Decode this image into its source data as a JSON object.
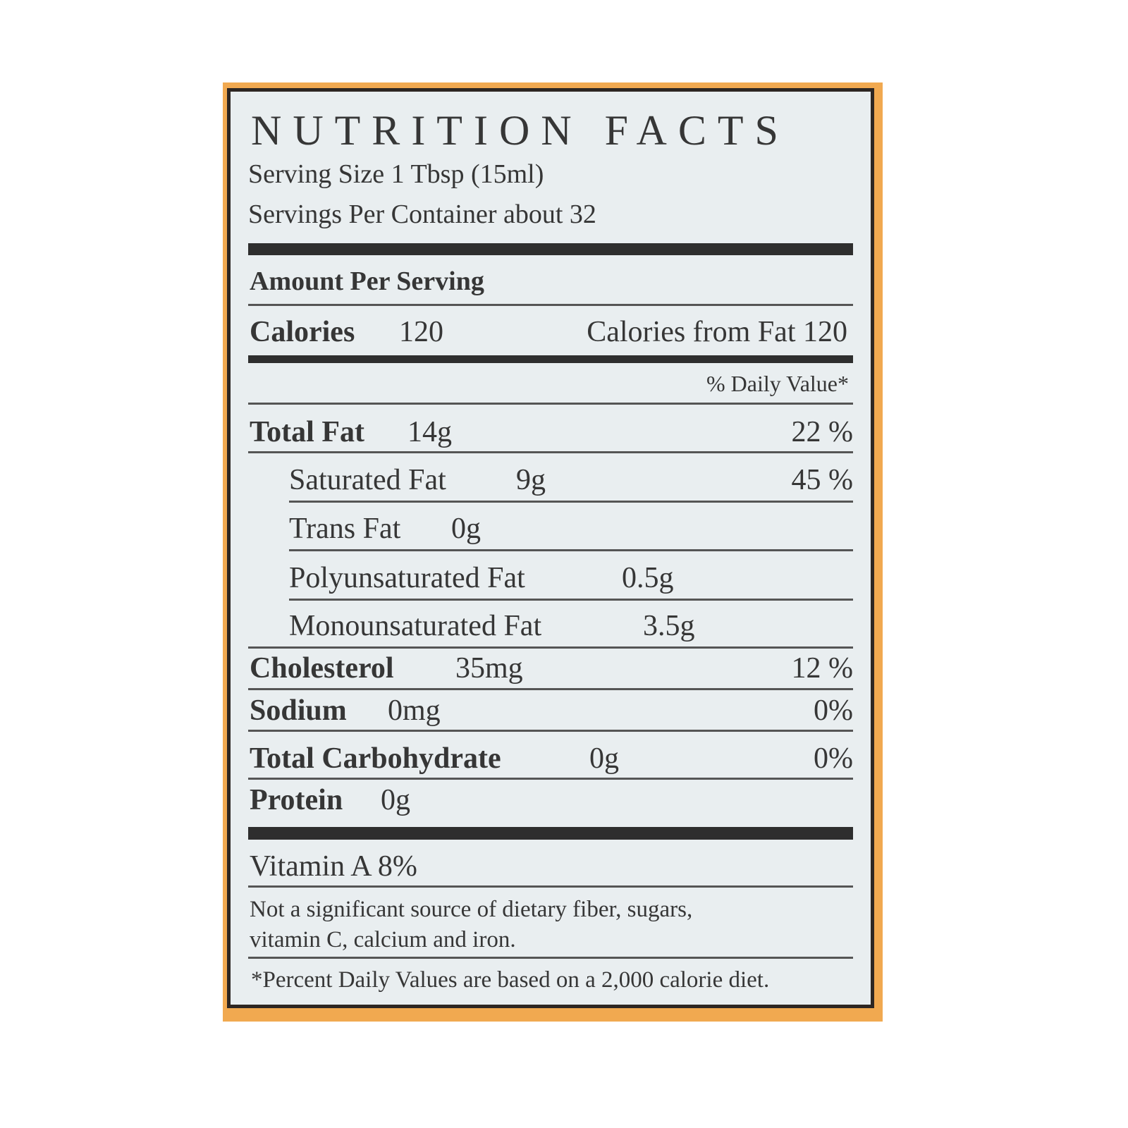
{
  "colors": {
    "frame": "#f1a950",
    "border": "#2d2622",
    "panel": "#e9eef0",
    "text": "#363636"
  },
  "title": "NUTRITION FACTS",
  "serving_size": "Serving Size 1 Tbsp (15ml)",
  "servings_per_container": "Servings Per Container about 32",
  "amount_per_serving": "Amount Per Serving",
  "calories": {
    "label": "Calories",
    "value": "120",
    "from_fat": "Calories from Fat 120"
  },
  "daily_value_header": "% Daily Value*",
  "nutrients": [
    {
      "label": "Total Fat",
      "amount": "14g",
      "dv": "22 %"
    },
    {
      "label": "Saturated Fat",
      "amount": "9g",
      "dv": "45 %"
    },
    {
      "label": "Trans Fat",
      "amount": "0g"
    },
    {
      "label": "Polyunsaturated Fat",
      "amount": "0.5g"
    },
    {
      "label": "Monounsaturated Fat",
      "amount": "3.5g"
    },
    {
      "label": "Cholesterol",
      "amount": "35mg",
      "dv": "12 %"
    },
    {
      "label": "Sodium",
      "amount": "0mg",
      "dv": "0%"
    },
    {
      "label": "Total Carbohydrate",
      "amount": "0g",
      "dv": "0%"
    },
    {
      "label": "Protein",
      "amount": "0g"
    }
  ],
  "vitamin_a": "Vitamin A 8%",
  "note_line1": "Not a significant source of dietary fiber, sugars,",
  "note_line2": "vitamin C, calcium and iron.",
  "footnote": "*Percent Daily Values are based on a 2,000 calorie diet."
}
